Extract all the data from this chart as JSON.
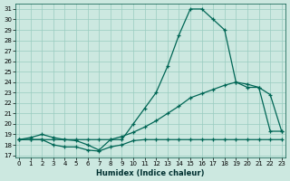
{
  "xlabel": "Humidex (Indice chaleur)",
  "bg_color": "#cce8e0",
  "line_color": "#006655",
  "grid_color": "#99ccc0",
  "ylim_min": 17,
  "ylim_max": 31.5,
  "xlim_min": -0.3,
  "xlim_max": 23.3,
  "yticks": [
    17,
    18,
    19,
    20,
    21,
    22,
    23,
    24,
    25,
    26,
    27,
    28,
    29,
    30,
    31
  ],
  "xticks": [
    0,
    1,
    2,
    3,
    4,
    5,
    6,
    7,
    8,
    9,
    10,
    11,
    12,
    13,
    14,
    15,
    16,
    17,
    18,
    19,
    20,
    21,
    22,
    23
  ],
  "series1_x": [
    0,
    1,
    2,
    3,
    4,
    5,
    6,
    7,
    8,
    9,
    10,
    11,
    12,
    13,
    14,
    15,
    16,
    17,
    18,
    19,
    20,
    21,
    22,
    23
  ],
  "series1_y": [
    18.5,
    18.7,
    19.0,
    18.7,
    18.5,
    18.4,
    18.0,
    17.5,
    18.5,
    18.5,
    20.0,
    21.5,
    23.0,
    25.5,
    28.5,
    31.0,
    31.0,
    30.0,
    29.0,
    24.0,
    23.5,
    23.5,
    19.3,
    19.3
  ],
  "series2_x": [
    0,
    1,
    2,
    3,
    4,
    5,
    6,
    7,
    8,
    9,
    10,
    11,
    12,
    13,
    14,
    15,
    16,
    17,
    18,
    19,
    20,
    21,
    22,
    23
  ],
  "series2_y": [
    18.5,
    18.5,
    18.5,
    18.5,
    18.5,
    18.5,
    18.5,
    18.5,
    18.5,
    18.8,
    19.2,
    19.7,
    20.3,
    21.0,
    21.7,
    22.5,
    22.9,
    23.3,
    23.7,
    24.0,
    23.8,
    23.5,
    22.8,
    19.3
  ],
  "series3_x": [
    0,
    1,
    2,
    3,
    4,
    5,
    6,
    7,
    8,
    9,
    10,
    11,
    12,
    13,
    14,
    15,
    16,
    17,
    18,
    19,
    20,
    21,
    22,
    23
  ],
  "series3_y": [
    18.5,
    18.5,
    18.5,
    18.0,
    17.8,
    17.8,
    17.5,
    17.4,
    17.8,
    18.0,
    18.4,
    18.5,
    18.5,
    18.5,
    18.5,
    18.5,
    18.5,
    18.5,
    18.5,
    18.5,
    18.5,
    18.5,
    18.5,
    18.5
  ]
}
